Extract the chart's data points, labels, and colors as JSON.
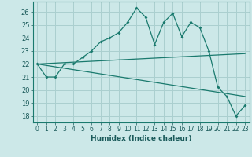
{
  "xlabel": "Humidex (Indice chaleur)",
  "ylabel": "",
  "bg_color": "#cce8e8",
  "line_color": "#1a7a6e",
  "grid_color": "#aacfcf",
  "xlim": [
    -0.5,
    23.5
  ],
  "ylim": [
    17.5,
    26.8
  ],
  "xticks": [
    0,
    1,
    2,
    3,
    4,
    5,
    6,
    7,
    8,
    9,
    10,
    11,
    12,
    13,
    14,
    15,
    16,
    17,
    18,
    19,
    20,
    21,
    22,
    23
  ],
  "yticks": [
    18,
    19,
    20,
    21,
    22,
    23,
    24,
    25,
    26
  ],
  "line1_x": [
    0,
    1,
    2,
    3,
    4,
    5,
    6,
    7,
    8,
    9,
    10,
    11,
    12,
    13,
    14,
    15,
    16,
    17,
    18,
    19,
    20,
    21,
    22,
    23
  ],
  "line1_y": [
    22,
    21,
    21,
    22,
    22,
    22.5,
    23,
    23.7,
    24,
    24.4,
    25.2,
    26.3,
    25.6,
    23.5,
    25.2,
    25.9,
    24.1,
    25.2,
    24.8,
    23.0,
    20.2,
    19.5,
    18.0,
    18.8
  ],
  "line2_x": [
    0,
    23
  ],
  "line2_y": [
    22.0,
    22.8
  ],
  "line3_x": [
    0,
    23
  ],
  "line3_y": [
    22.0,
    19.5
  ]
}
